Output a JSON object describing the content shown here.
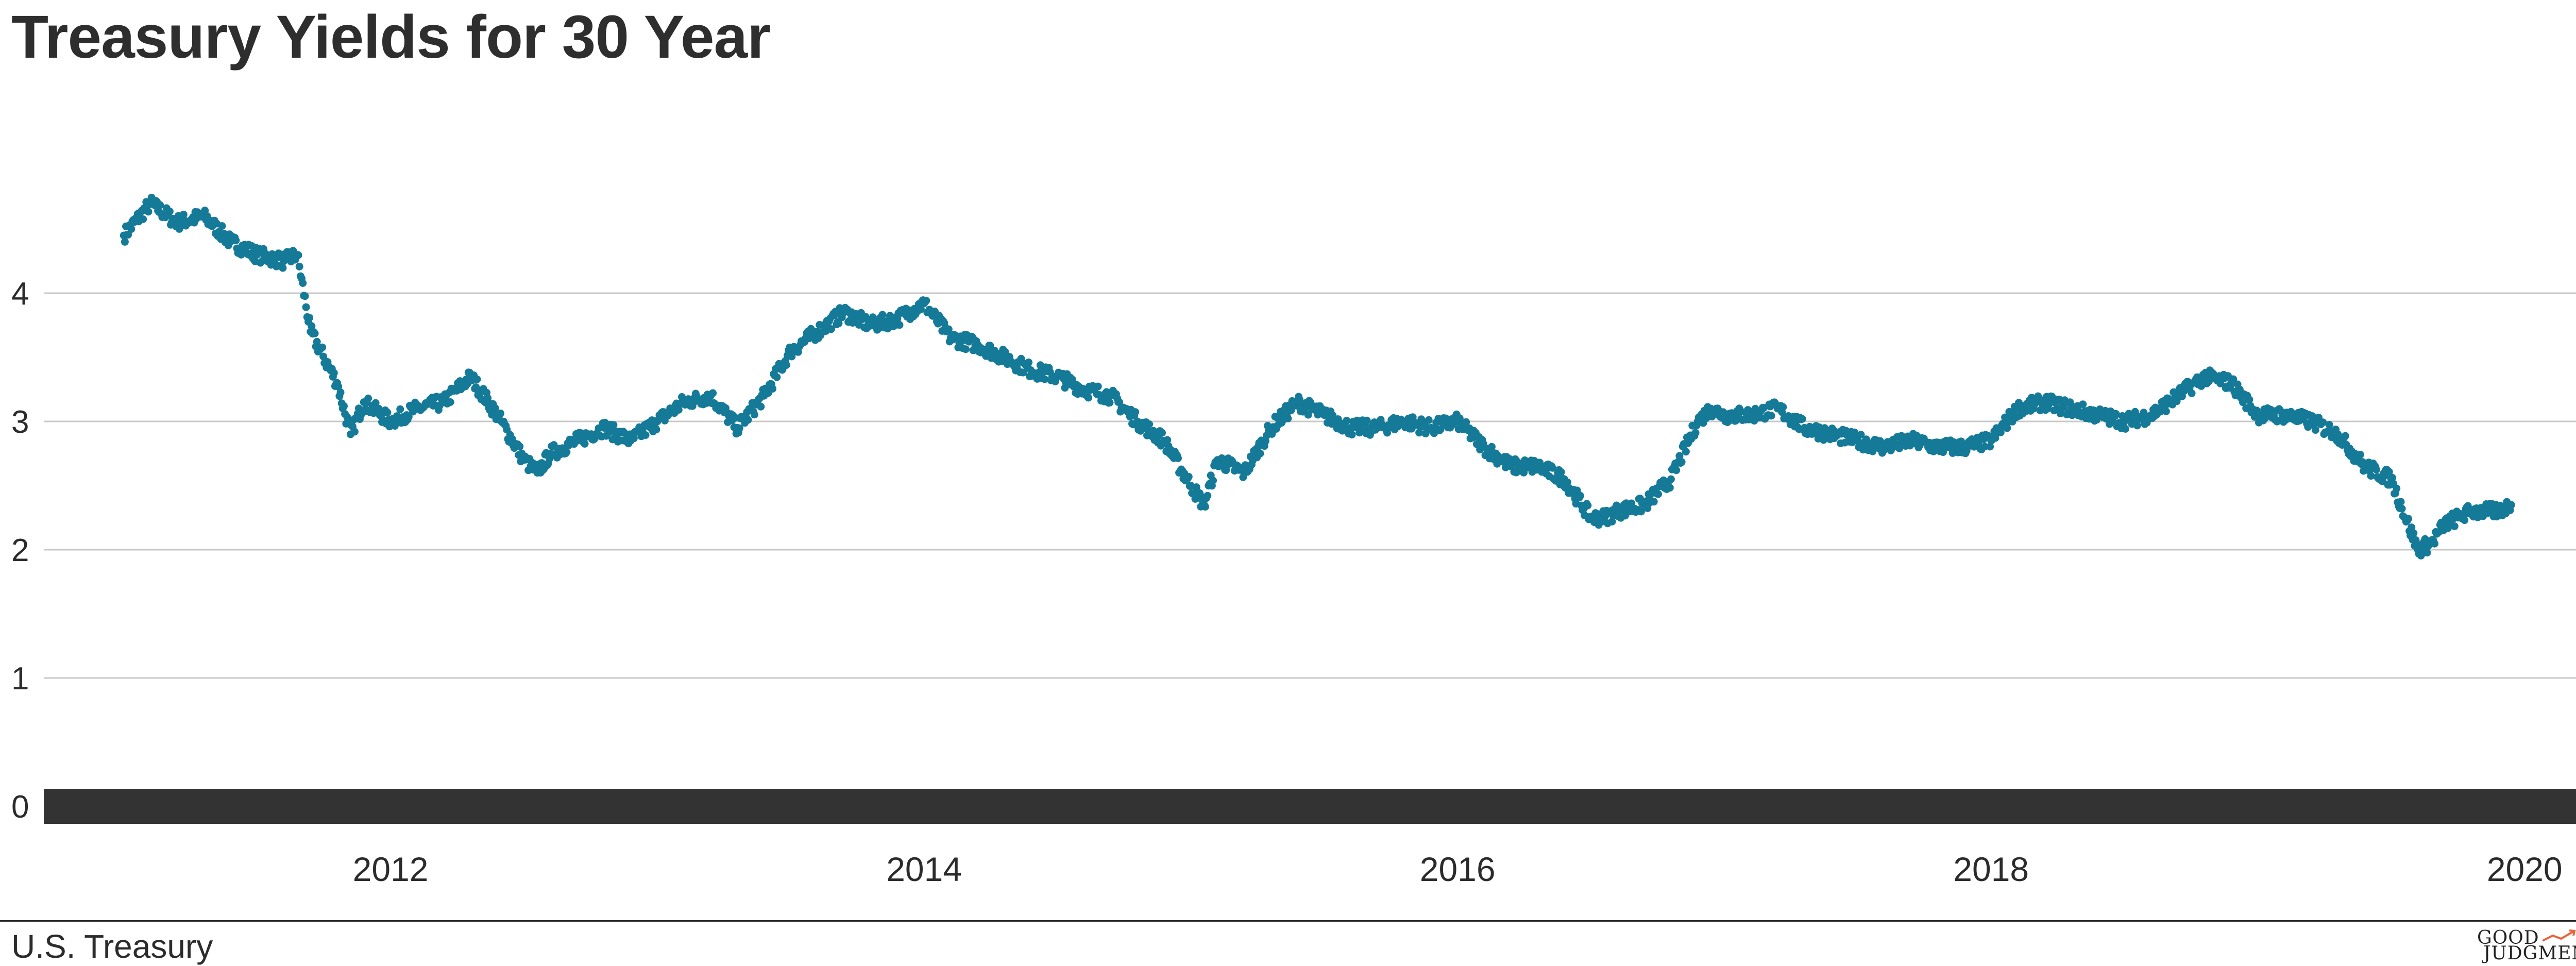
{
  "title": "Treasury Yields for 30 Year",
  "source": "U.S. Treasury",
  "logo": {
    "line1": "GOOD",
    "line2": "JUDGMENT",
    "mark": "®"
  },
  "colors": {
    "series": "#157a98",
    "baseline": "#333333",
    "grid": "#c8c8c8",
    "logo_accent": "#e8643a"
  },
  "chart_data": {
    "type": "scatter",
    "title": "Treasury Yields for 30 Year",
    "xlabel": "",
    "ylabel": "",
    "x_domain": [
      2010.7,
      2020.55
    ],
    "ylim": [
      0,
      5
    ],
    "yticks": [
      0,
      1,
      2,
      3,
      4
    ],
    "xticks": [
      2012,
      2014,
      2016,
      2018,
      2020
    ],
    "grid": true,
    "legend": "none",
    "series": [
      {
        "x": [
          2011.0,
          2011.1,
          2011.2,
          2011.3,
          2011.4,
          2011.5,
          2011.6,
          2011.65,
          2011.7,
          2011.8,
          2011.85,
          2011.9,
          2012.0,
          2012.1,
          2012.2,
          2012.3,
          2012.4,
          2012.5,
          2012.55,
          2012.6,
          2012.7,
          2012.8,
          2012.9,
          2013.0,
          2013.1,
          2013.2,
          2013.3,
          2013.4,
          2013.5,
          2013.6,
          2013.7,
          2013.8,
          2013.9,
          2014.0,
          2014.1,
          2014.2,
          2014.3,
          2014.4,
          2014.5,
          2014.6,
          2014.7,
          2014.8,
          2014.9,
          2015.0,
          2015.05,
          2015.1,
          2015.2,
          2015.3,
          2015.4,
          2015.5,
          2015.6,
          2015.7,
          2015.8,
          2015.9,
          2016.0,
          2016.1,
          2016.2,
          2016.3,
          2016.4,
          2016.5,
          2016.55,
          2016.6,
          2016.7,
          2016.8,
          2016.9,
          2016.95,
          2017.0,
          2017.1,
          2017.2,
          2017.3,
          2017.4,
          2017.5,
          2017.6,
          2017.7,
          2017.8,
          2017.9,
          2018.0,
          2018.1,
          2018.2,
          2018.3,
          2018.4,
          2018.5,
          2018.6,
          2018.7,
          2018.8,
          2018.9,
          2019.0,
          2019.1,
          2019.2,
          2019.3,
          2019.4,
          2019.5,
          2019.6,
          2019.65,
          2019.7,
          2019.75,
          2019.8,
          2019.9,
          2019.95
        ],
        "y": [
          4.45,
          4.7,
          4.55,
          4.6,
          4.4,
          4.3,
          4.25,
          4.3,
          3.7,
          3.3,
          2.9,
          3.15,
          3.0,
          3.1,
          3.15,
          3.35,
          3.05,
          2.7,
          2.6,
          2.75,
          2.85,
          2.95,
          2.85,
          3.0,
          3.15,
          3.2,
          2.95,
          3.2,
          3.55,
          3.7,
          3.85,
          3.75,
          3.8,
          3.92,
          3.65,
          3.6,
          3.5,
          3.4,
          3.35,
          3.25,
          3.2,
          3.0,
          2.85,
          2.5,
          2.35,
          2.7,
          2.6,
          2.95,
          3.15,
          3.05,
          2.95,
          2.95,
          3.0,
          2.95,
          3.0,
          2.8,
          2.65,
          2.65,
          2.55,
          2.25,
          2.25,
          2.3,
          2.35,
          2.55,
          3.0,
          3.1,
          3.05,
          3.05,
          3.1,
          2.95,
          2.9,
          2.85,
          2.8,
          2.85,
          2.8,
          2.8,
          2.85,
          3.1,
          3.15,
          3.1,
          3.05,
          3.0,
          3.05,
          3.2,
          3.35,
          3.3,
          3.05,
          3.05,
          3.0,
          2.9,
          2.65,
          2.55,
          2.0,
          2.05,
          2.2,
          2.25,
          2.3,
          2.3,
          2.35
        ]
      }
    ]
  }
}
